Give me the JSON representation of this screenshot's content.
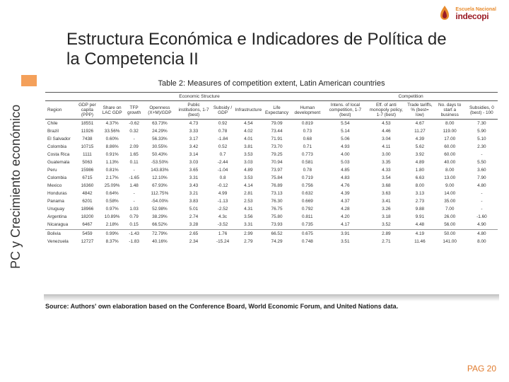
{
  "logo": {
    "top": "Escuela Nacional",
    "bottom": "indecopi"
  },
  "title": "Estructura Económica e Indicadores de Política de la Competencia II",
  "sidebar": "PC y Crecimiento económico",
  "table": {
    "caption": "Table 2: Measures of competition extent, Latin American countries",
    "groupHeaders": [
      "",
      "Economic Structure",
      "Competition"
    ],
    "columns": [
      "Region",
      "GDP per capita (PPP)",
      "Share on LAC GDP",
      "TFP growth",
      "Openness (X+M)/GDP",
      "Public institutions, 1-7 (best)",
      "Subsidy / GDP",
      "Infrastructure",
      "Life Expectancy",
      "Human development",
      "Intens. of local competition, 1-7 (best)",
      "Eff. of anti monopoly policy, 1-7 (best)",
      "Trade tariffs, % (best= low)",
      "No. days to start a business",
      "Subsidies, 0 (best) - 100"
    ],
    "rows": [
      [
        "Chile",
        "18551",
        "4.37%",
        "-0.62",
        "63.73%",
        "4.73",
        "0.92",
        "4.54",
        "79.09",
        "0.819",
        "5.54",
        "4.53",
        "4.67",
        "8.00",
        "7.30"
      ],
      [
        "Brazil",
        "11926",
        "33.56%",
        "0.32",
        "24.29%",
        "3.33",
        "0.78",
        "4.02",
        "73.44",
        "0.73",
        "5.14",
        "4.46",
        "11.27",
        "119.00",
        "5.90"
      ],
      [
        "El Salvador",
        "7438",
        "0.60%",
        "-",
        "56.33%",
        "3.17",
        "-1.84",
        "4.01",
        "71.91",
        "0.68",
        "5.06",
        "3.04",
        "4.39",
        "17.00",
        "5.10"
      ],
      [
        "Colombia",
        "10715",
        "8.86%",
        "2.09",
        "30.55%",
        "3.42",
        "0.52",
        "3.81",
        "73.70",
        "0.71",
        "4.93",
        "4.11",
        "5.62",
        "60.00",
        "2.30"
      ],
      [
        "Costa Rica",
        "1111",
        "0.91%",
        "1.65",
        "50.43%",
        "3.14",
        "0.7",
        "3.53",
        "79.25",
        "0.773",
        "4.00",
        "3.00",
        "3.92",
        "60.00",
        "-"
      ],
      [
        "Guatemala",
        "5063",
        "1.13%",
        "0.11",
        "-53.50%",
        "3.03",
        "-2.44",
        "3.03",
        "70.94",
        "0.581",
        "5.03",
        "3.35",
        "4.89",
        "40.00",
        "5.50"
      ],
      [
        "Peru",
        "15986",
        "0.81%",
        "-",
        "143.83%",
        "3.65",
        "-1.04",
        "4.89",
        "73.97",
        "0.78",
        "4.85",
        "4.33",
        "1.80",
        "8.00",
        "3.60"
      ],
      [
        "Colombia",
        "6715",
        "2.17%",
        "-1.65",
        "12.10%",
        "3.31",
        "0.8",
        "3.53",
        "75.84",
        "0.719",
        "4.83",
        "3.54",
        "6.63",
        "13.00",
        "7.90"
      ],
      [
        "Mexico",
        "16360",
        "25.09%",
        "1.48",
        "67.93%",
        "3.43",
        "-0.12",
        "4.14",
        "76.89",
        "0.756",
        "4.76",
        "3.68",
        "8.00",
        "9.00",
        "4.80"
      ],
      [
        "Honduras",
        "4842",
        "0.64%",
        "-",
        "112.75%",
        "3.21",
        "4.99",
        "2.81",
        "73.13",
        "0.632",
        "4.39",
        "3.63",
        "3.13",
        "14.00",
        "-"
      ],
      [
        "Panama",
        "6201",
        "0.58%",
        "-",
        "-54.00%",
        "3.83",
        "-1.13",
        "2.53",
        "76.30",
        "0.669",
        "4.37",
        "3.41",
        "2.73",
        "35.00",
        "-"
      ],
      [
        "Uruguay",
        "18966",
        "0.97%",
        "1.03",
        "52.98%",
        "5.01",
        "-2.52",
        "4.31",
        "76.75",
        "0.792",
        "4.28",
        "3.26",
        "9.88",
        "7.00",
        "-"
      ],
      [
        "Argentina",
        "18200",
        "10.89%",
        "0.79",
        "38.29%",
        "2.74",
        "4.3c",
        "3.56",
        "75.80",
        "0.811",
        "4.20",
        "3.18",
        "9.91",
        "26.00",
        "-1.60"
      ],
      [
        "Nicaragua",
        "6467",
        "2.18%",
        "0.15",
        "66.52%",
        "3.28",
        "-3.52",
        "3.31",
        "73.93",
        "0.735",
        "4.17",
        "3.52",
        "4.48",
        "56.00",
        "4.90"
      ],
      [
        "Bolivia",
        "5459",
        "0.99%",
        "-1.43",
        "72.79%",
        "2.65",
        "1.76",
        "2.99",
        "66.52",
        "0.675",
        "3.91",
        "2.89",
        "4.19",
        "50.00",
        "4.80"
      ],
      [
        "Venezuela",
        "12727",
        "8.37%",
        "-1.83",
        "40.16%",
        "2.34",
        "-15.24",
        "2.79",
        "74.29",
        "0.748",
        "3.51",
        "2.71",
        "11.46",
        "141.00",
        "8.00"
      ]
    ]
  },
  "source": "Source: Authors' own elaboration based on the Conference Board, World Economic Forum, and United Nations data.",
  "pageLabel": "PAG 20",
  "colors": {
    "accent": "#e07b2e",
    "brand": "#9b1c26"
  }
}
